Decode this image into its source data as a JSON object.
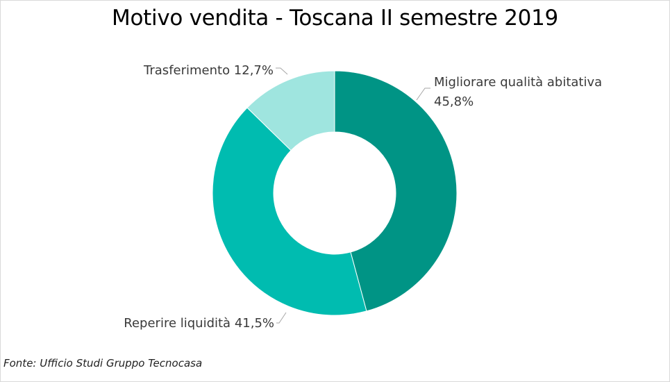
{
  "chart_data": {
    "type": "pie",
    "variant": "donut",
    "title": "Motivo vendita - Toscana II semestre 2019",
    "slices": [
      {
        "label": "Migliorare qualità abitativa",
        "value": 45.8,
        "display": "45,8%",
        "color": "#009485"
      },
      {
        "label": "Reperire liquidità",
        "value": 41.5,
        "display": "41,5%",
        "color": "#00bcb0"
      },
      {
        "label": "Trasferimento",
        "value": 12.7,
        "display": "12,7%",
        "color": "#9fe5df"
      }
    ],
    "start_angle_deg": 0,
    "direction": "clockwise",
    "legend": "none"
  },
  "source": "Fonte: Ufficio Studi Gruppo Tecnocasa"
}
